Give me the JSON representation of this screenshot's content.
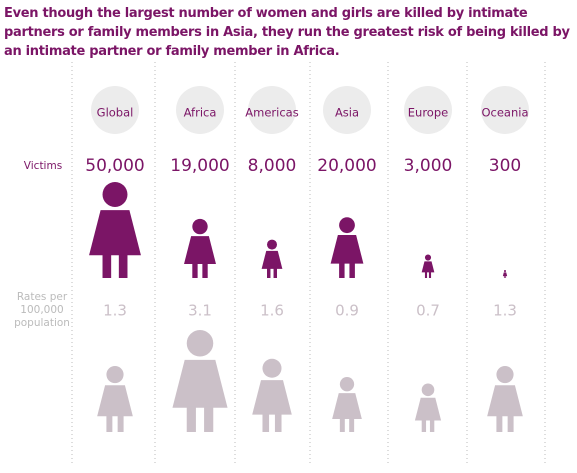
{
  "chart_data": {
    "type": "pictogram",
    "title": "Even though the largest number of women and girls are killed by intimate partners or family members in Asia, they run the greatest risk of being killed by an intimate partner or family member in Africa.",
    "categories": [
      "Global",
      "Africa",
      "Americas",
      "Asia",
      "Europe",
      "Oceania"
    ],
    "series": [
      {
        "name": "Victims",
        "color": "#7b1566",
        "values": [
          50000,
          19000,
          8000,
          20000,
          3000,
          300
        ],
        "value_labels": [
          "50,000",
          "19,000",
          "8,000",
          "20,000",
          "3,000",
          "300"
        ]
      },
      {
        "name": "Rates per 100,000 population",
        "color": "#cbc0c8",
        "values": [
          1.3,
          3.1,
          1.6,
          0.9,
          0.7,
          1.3
        ]
      }
    ]
  }
}
